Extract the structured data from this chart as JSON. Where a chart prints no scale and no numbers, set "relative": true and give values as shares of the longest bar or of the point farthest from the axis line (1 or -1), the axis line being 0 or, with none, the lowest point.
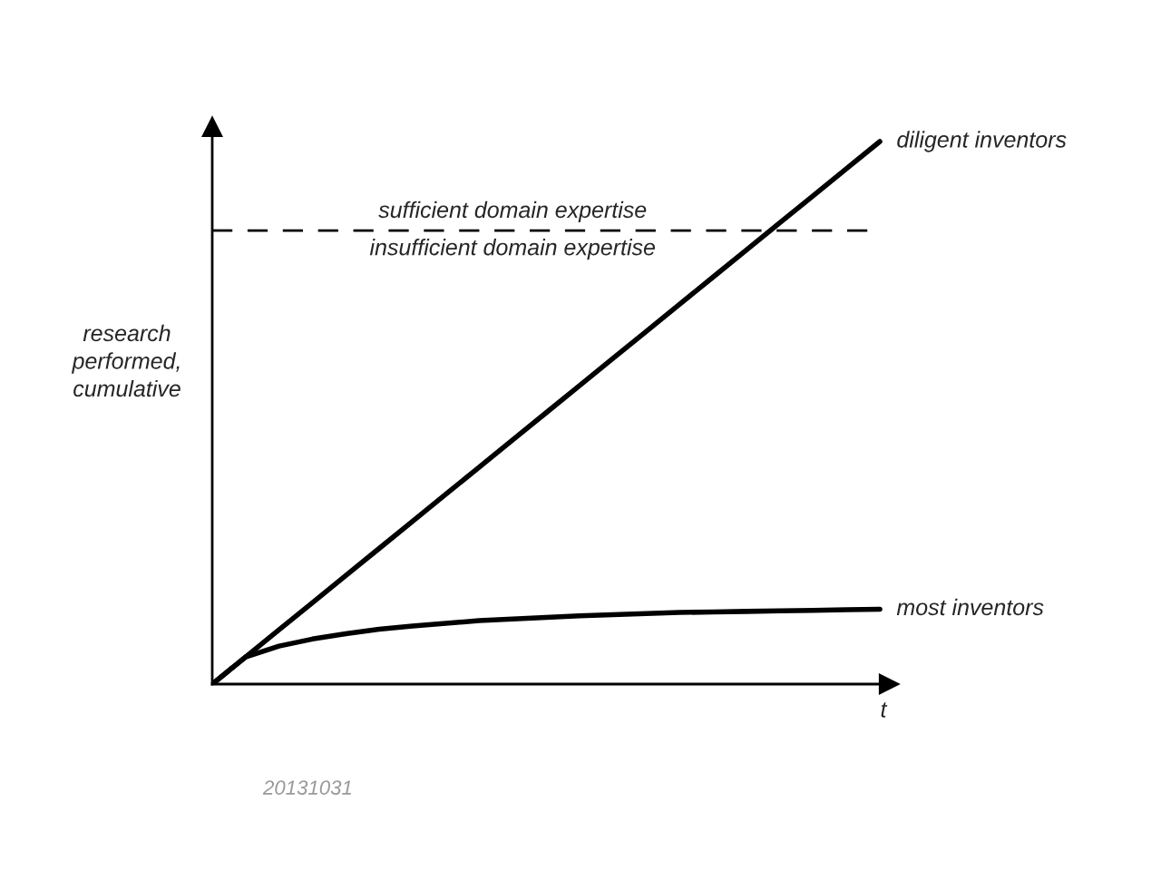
{
  "chart_data": {
    "type": "line",
    "relative": true,
    "xlabel": "t",
    "ylabel": "research\nperformed,\ncumulative",
    "categories": [
      null,
      null,
      null,
      null,
      null,
      null,
      null,
      null,
      null,
      null,
      null,
      null,
      null,
      null,
      null,
      null,
      null,
      null,
      null,
      null,
      null
    ],
    "series": [
      {
        "name": "diligent inventors",
        "color": "#000000",
        "values": [
          0,
          0.05,
          0.1,
          0.15,
          0.2,
          0.25,
          0.3,
          0.35,
          0.4,
          0.45,
          0.5,
          0.55,
          0.6,
          0.65,
          0.7,
          0.75,
          0.8,
          0.85,
          0.9,
          0.95,
          1
        ]
      },
      {
        "name": "most inventors",
        "color": "#000000",
        "values": [
          0,
          0.05,
          0.07,
          0.083,
          0.093,
          0.101,
          0.107,
          0.112,
          0.117,
          0.12,
          0.123,
          0.126,
          0.128,
          0.13,
          0.132,
          0.133,
          0.134,
          0.135,
          0.136,
          0.137,
          0.138
        ]
      }
    ],
    "ref_lines": [
      {
        "axis": "y",
        "value": 0.836,
        "label": "sufficient domain expertise",
        "color": "#000000",
        "line_style": "dashed"
      }
    ],
    "annotations": [
      {
        "text": "insufficient domain expertise",
        "y": 0.836
      },
      "20131031"
    ],
    "legend": false,
    "marker": "none",
    "line_style": "solid"
  }
}
